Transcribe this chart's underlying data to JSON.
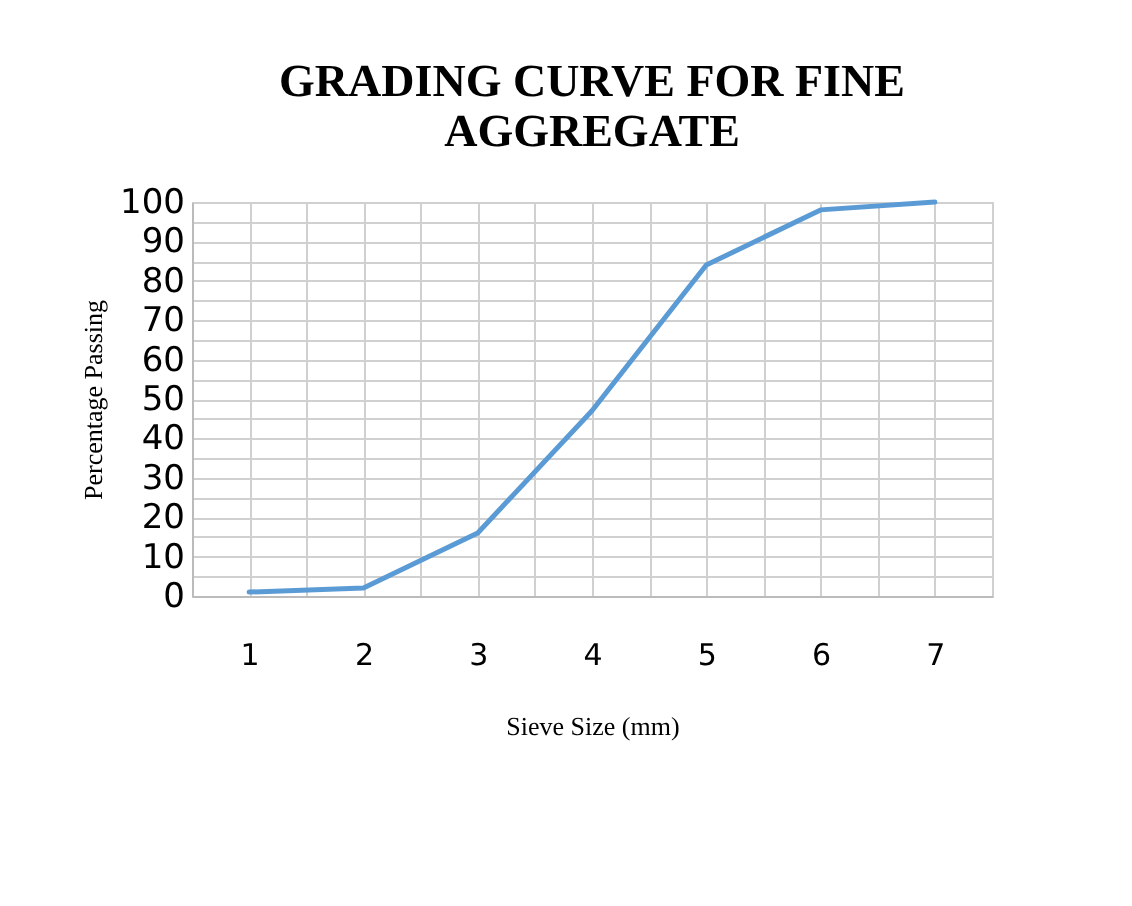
{
  "chart_data": {
    "type": "line",
    "title": "GRADING CURVE FOR FINE AGGREGATE",
    "xlabel": "Sieve Size (mm)",
    "ylabel": "Percentage Passing",
    "x": [
      1,
      2,
      3,
      4,
      5,
      6,
      7
    ],
    "series": [
      {
        "color": "#5b9bd5",
        "values": [
          1,
          2,
          16,
          47,
          84,
          98,
          100
        ]
      }
    ],
    "xlim": [
      0.5,
      7.5
    ],
    "xticks": [
      {
        "value": 0.5,
        "label": null
      },
      1,
      {
        "value": 1.5,
        "label": null
      },
      2,
      {
        "value": 2.5,
        "label": null
      },
      3,
      {
        "value": 3.5,
        "label": null
      },
      4,
      {
        "value": 4.5,
        "label": null
      },
      5,
      {
        "value": 5.5,
        "label": null
      },
      6,
      {
        "value": 6.5,
        "label": null
      },
      7,
      {
        "value": 7.5,
        "label": null
      }
    ],
    "ylim": [
      0,
      100
    ],
    "yticks": [
      0,
      {
        "value": 5,
        "label": null
      },
      10,
      {
        "value": 15,
        "label": null
      },
      20,
      {
        "value": 25,
        "label": null
      },
      30,
      {
        "value": 35,
        "label": null
      },
      40,
      {
        "value": 45,
        "label": null
      },
      50,
      {
        "value": 55,
        "label": null
      },
      60,
      {
        "value": 65,
        "label": null
      },
      70,
      {
        "value": 75,
        "label": null
      },
      80,
      {
        "value": 85,
        "label": null
      },
      90,
      {
        "value": 95,
        "label": null
      },
      100
    ],
    "grid": true,
    "marker": "none",
    "line_style": "solid"
  }
}
